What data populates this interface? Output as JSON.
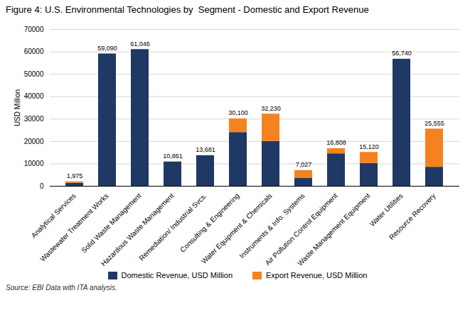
{
  "chart_data": {
    "type": "bar",
    "stacked": true,
    "title": "Figure 4: U.S. Environmental Technologies by  Segment - Domestic and Export Revenue",
    "ylabel": "USD Million",
    "annotations": [
      "Source: EBI Data with ITA analysis."
    ],
    "categories": [
      "Analytical Services",
      "Wastewater Treatment Works",
      "Solid Waste Management",
      "Hazardous Waste Management",
      "Remediation/ Industrial Svcs.",
      "Consulting & Engineering",
      "Water Equipment & Chemicals",
      "Instruments & Info. Systems",
      "Air Pollution Control Equipment",
      "Waste Management Equipment",
      "Water Utilities",
      "Resource Recovery"
    ],
    "series": [
      {
        "name": "Domestic Revenue, USD Million",
        "color": "#1F3864",
        "values": [
          1400,
          59090,
          61046,
          10861,
          13681,
          24000,
          20000,
          3500,
          14500,
          10200,
          56740,
          8500
        ]
      },
      {
        "name": "Export Revenue, USD Million",
        "color": "#F4831F",
        "values": [
          575,
          0,
          0,
          0,
          0,
          6100,
          12230,
          3527,
          2308,
          4920,
          0,
          17055
        ]
      }
    ],
    "totals": [
      1975,
      59090,
      61046,
      10861,
      13681,
      30100,
      32230,
      7027,
      16808,
      15120,
      56740,
      25555
    ],
    "total_labels": [
      "1,975",
      "59,090",
      "61,046",
      "10,861",
      "13,681",
      "30,100",
      "32,230",
      "7,027",
      "16,808",
      "15,120",
      "56,740",
      "25,555"
    ],
    "ylim": [
      0,
      70000
    ],
    "yticks": [
      0,
      10000,
      20000,
      30000,
      40000,
      50000,
      60000,
      70000
    ],
    "grid": true,
    "legend": "bottom"
  }
}
